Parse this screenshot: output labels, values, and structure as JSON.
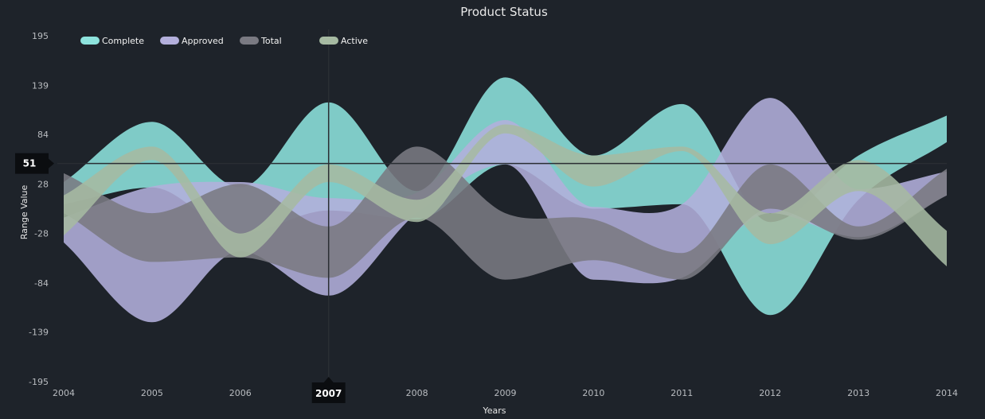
{
  "chart_data": {
    "type": "area",
    "subtype": "range-spline-area",
    "title": "Product Status",
    "xlabel": "Years",
    "ylabel": "Range Value",
    "x": [
      2004,
      2005,
      2006,
      2007,
      2008,
      2009,
      2010,
      2011,
      2012,
      2013,
      2014
    ],
    "x_ticks": [
      "2004",
      "2005",
      "2006",
      "2007",
      "2008",
      "2009",
      "2010",
      "2011",
      "2012",
      "2013",
      "2014"
    ],
    "y_ticks": [
      "195",
      "139",
      "84",
      "28",
      "-28",
      "-84",
      "-139",
      "-195"
    ],
    "ylim": [
      -195,
      195
    ],
    "legend_position": "top-left",
    "grid": false,
    "crosshair": {
      "x_label": "2007",
      "y_label": "51",
      "y_value": 51
    },
    "series": [
      {
        "name": "Complete",
        "color": "#8de3dd",
        "high": [
          30,
          98,
          24,
          120,
          20,
          148,
          60,
          118,
          -15,
          60,
          105
        ],
        "low": [
          5,
          24,
          -28,
          -2,
          -12,
          50,
          0,
          5,
          -120,
          10,
          75
        ]
      },
      {
        "name": "Approved",
        "color": "#b3afdc",
        "high": [
          -10,
          25,
          30,
          12,
          18,
          100,
          2,
          5,
          125,
          22,
          42
        ],
        "low": [
          -38,
          -128,
          -48,
          -98,
          -5,
          50,
          -80,
          -78,
          -5,
          -32,
          15
        ]
      },
      {
        "name": "Total",
        "color": "#7a7a82",
        "high": [
          40,
          -5,
          28,
          -20,
          70,
          -5,
          -12,
          -50,
          50,
          -20,
          45
        ],
        "low": [
          -5,
          -60,
          -55,
          -78,
          -10,
          -80,
          -58,
          -80,
          0,
          -35,
          15
        ]
      },
      {
        "name": "Active",
        "color": "#a6baa2",
        "high": [
          15,
          70,
          -28,
          50,
          10,
          95,
          60,
          70,
          -5,
          55,
          -25
        ],
        "low": [
          -30,
          55,
          -55,
          30,
          -15,
          85,
          25,
          65,
          -40,
          20,
          -65
        ]
      }
    ]
  }
}
